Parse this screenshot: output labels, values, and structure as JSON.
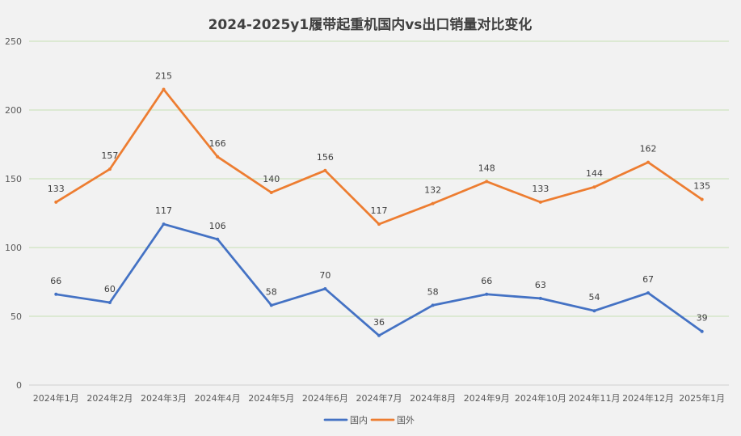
{
  "chart_data": {
    "type": "line",
    "title": "2024-2025y1履带起重机国内vs出口销量对比变化",
    "xlabel": "",
    "ylabel": "",
    "categories": [
      "2024年1月",
      "2024年2月",
      "2024年3月",
      "2024年4月",
      "2024年5月",
      "2024年6月",
      "2024年7月",
      "2024年8月",
      "2024年9月",
      "2024年10月",
      "2024年11月",
      "2024年12月",
      "2025年1月"
    ],
    "series": [
      {
        "name": "国内",
        "color": "#4472c4",
        "values": [
          66,
          60,
          117,
          106,
          58,
          70,
          36,
          58,
          66,
          63,
          54,
          67,
          39
        ]
      },
      {
        "name": "国外",
        "color": "#ed7d31",
        "values": [
          133,
          157,
          215,
          166,
          140,
          156,
          117,
          132,
          148,
          133,
          144,
          162,
          135
        ]
      }
    ],
    "ylim": [
      0,
      250
    ],
    "yticks": [
      0,
      50,
      100,
      150,
      200,
      250
    ],
    "grid": true,
    "legend": "bottom",
    "data_labels": true
  }
}
